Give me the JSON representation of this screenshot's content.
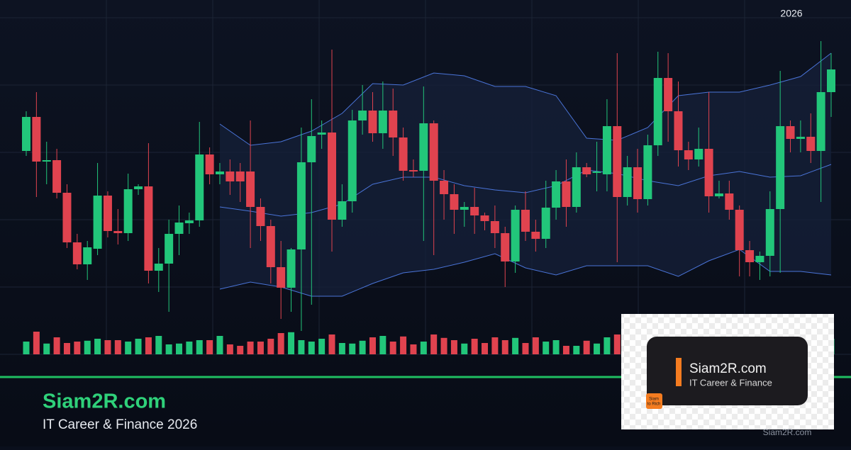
{
  "header": {
    "year": "2026"
  },
  "brand": {
    "title": "Siam2R.com",
    "subtitle": "IT Career & Finance 2026"
  },
  "logo_card": {
    "title": "Siam2R.com",
    "subtitle": "IT Career & Finance",
    "badge": [
      "Siam",
      "to Rich"
    ]
  },
  "footer": {
    "site": "Siam2R.com"
  },
  "chart_data": {
    "type": "candlestick",
    "up_color": "#22c67a",
    "down_color": "#e0434f",
    "band_color": "#4a74d8",
    "ylim": [
      0,
      475
    ],
    "volume_ylim": [
      0,
      100
    ],
    "open": [
      287,
      335,
      272,
      274,
      228,
      158,
      127,
      149,
      224,
      174,
      171,
      233,
      237,
      118,
      128,
      170,
      185,
      189,
      282,
      254,
      258,
      258,
      258,
      208,
      181,
      123,
      94,
      148,
      271,
      310,
      313,
      190,
      216,
      330,
      344,
      312,
      344,
      306,
      260,
      259,
      326,
      245,
      226,
      204,
      208,
      196,
      188,
      171,
      131,
      204,
      173,
      163,
      207,
      244,
      208,
      264,
      256,
      254,
      322,
      222,
      264,
      219,
      295,
      390,
      343,
      288,
      275,
      290,
      223,
      227,
      204,
      147,
      130,
      139,
      205,
      322,
      304,
      307,
      287,
      370
    ],
    "high": [
      343,
      370,
      300,
      290,
      240,
      170,
      160,
      270,
      230,
      205,
      255,
      240,
      298,
      150,
      190,
      210,
      200,
      328,
      292,
      270,
      275,
      270,
      330,
      220,
      190,
      160,
      150,
      320,
      360,
      330,
      430,
      240,
      345,
      380,
      370,
      385,
      375,
      320,
      275,
      378,
      330,
      260,
      240,
      215,
      235,
      200,
      210,
      180,
      210,
      230,
      190,
      245,
      260,
      275,
      285,
      270,
      300,
      360,
      425,
      280,
      290,
      310,
      427,
      425,
      385,
      300,
      320,
      370,
      245,
      245,
      210,
      160,
      145,
      230,
      400,
      330,
      330,
      340,
      442,
      425
    ],
    "low": [
      280,
      222,
      240,
      220,
      150,
      120,
      105,
      140,
      165,
      155,
      160,
      225,
      100,
      88,
      60,
      140,
      170,
      180,
      240,
      240,
      225,
      215,
      150,
      160,
      100,
      50,
      60,
      33,
      70,
      290,
      145,
      180,
      200,
      310,
      300,
      290,
      280,
      245,
      250,
      160,
      140,
      190,
      170,
      180,
      170,
      175,
      150,
      95,
      115,
      160,
      145,
      150,
      190,
      180,
      200,
      250,
      230,
      230,
      130,
      210,
      200,
      210,
      280,
      300,
      265,
      260,
      265,
      200,
      220,
      190,
      110,
      110,
      105,
      110,
      115,
      285,
      285,
      270,
      215,
      335
    ],
    "close": [
      335,
      272,
      274,
      228,
      158,
      127,
      151,
      224,
      174,
      171,
      233,
      237,
      118,
      128,
      170,
      186,
      189,
      282,
      254,
      258,
      244,
      244,
      208,
      181,
      123,
      94,
      148,
      271,
      308,
      313,
      190,
      216,
      330,
      344,
      312,
      344,
      306,
      259,
      258,
      326,
      245,
      226,
      204,
      208,
      196,
      188,
      171,
      131,
      204,
      173,
      163,
      207,
      244,
      208,
      264,
      254,
      258,
      322,
      222,
      264,
      219,
      295,
      390,
      343,
      288,
      275,
      290,
      223,
      227,
      204,
      147,
      130,
      139,
      205,
      322,
      304,
      307,
      287,
      370,
      402
    ],
    "volume": [
      45,
      80,
      38,
      60,
      40,
      45,
      48,
      55,
      50,
      50,
      45,
      55,
      60,
      65,
      35,
      38,
      45,
      50,
      50,
      65,
      35,
      30,
      45,
      45,
      55,
      75,
      78,
      50,
      45,
      55,
      70,
      40,
      38,
      48,
      60,
      65,
      45,
      63,
      35,
      45,
      70,
      58,
      50,
      38,
      55,
      40,
      60,
      50,
      58,
      40,
      60,
      45,
      50,
      30,
      30,
      48,
      38,
      60,
      70,
      45,
      55,
      50,
      40,
      38,
      55,
      40,
      48,
      45,
      62,
      50,
      40,
      55,
      45,
      38,
      60,
      50,
      50,
      62,
      45,
      55
    ],
    "bands": {
      "x": [
        19,
        22,
        25,
        28,
        31,
        34,
        37,
        40,
        43,
        46,
        49,
        52,
        55,
        58,
        61,
        64,
        67,
        70,
        73,
        76,
        79
      ],
      "upper": [
        325,
        295,
        300,
        315,
        340,
        382,
        380,
        397,
        393,
        378,
        378,
        365,
        305,
        302,
        320,
        365,
        370,
        370,
        380,
        392,
        425
      ],
      "middle": [
        208,
        202,
        195,
        200,
        212,
        240,
        250,
        250,
        238,
        232,
        228,
        238,
        260,
        255,
        245,
        238,
        252,
        258,
        250,
        252,
        268
      ],
      "lower": [
        92,
        102,
        95,
        82,
        82,
        100,
        115,
        120,
        130,
        142,
        122,
        112,
        125,
        125,
        125,
        110,
        132,
        148,
        117,
        117,
        112
      ]
    }
  }
}
